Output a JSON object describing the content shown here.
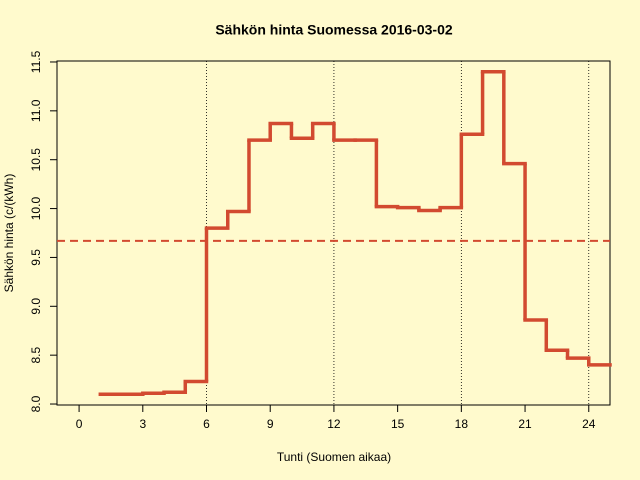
{
  "chart_data": {
    "type": "step",
    "title": "Sähkön hinta Suomessa 2016-03-02",
    "x_label": "Tunti (Suomen aikaa)",
    "y_label": "Sähkön hinta (c/(kWh)",
    "x": [
      1,
      2,
      3,
      4,
      5,
      6,
      7,
      8,
      9,
      10,
      11,
      12,
      13,
      14,
      15,
      16,
      17,
      18,
      19,
      20,
      21,
      22,
      23,
      24
    ],
    "values": [
      8.1,
      8.1,
      8.11,
      8.12,
      8.23,
      9.8,
      9.97,
      10.7,
      10.87,
      10.72,
      10.87,
      10.7,
      10.7,
      10.02,
      10.01,
      9.98,
      10.01,
      10.76,
      11.4,
      10.46,
      8.86,
      8.55,
      8.47,
      8.4
    ],
    "color": "#d24a30",
    "mean_line": 9.67,
    "mean_color": "#d24a30",
    "vlines": [
      6,
      12,
      18,
      24
    ],
    "xlim": [
      -1.04,
      25
    ],
    "ylim": [
      7.99,
      11.51
    ],
    "xticks": [
      0,
      3,
      6,
      9,
      12,
      15,
      18,
      21,
      24
    ],
    "yticks": [
      {
        "value": 8,
        "label": "8.0"
      },
      {
        "value": 8.5,
        "label": "8.5"
      },
      {
        "value": 9,
        "label": "9.0"
      },
      {
        "value": 9.5,
        "label": "9.5"
      },
      {
        "value": 10,
        "label": "10.0"
      },
      {
        "value": 10.5,
        "label": "10.5"
      },
      {
        "value": 11,
        "label": "11.0"
      },
      {
        "value": 11.5,
        "label": "11.5"
      }
    ]
  }
}
